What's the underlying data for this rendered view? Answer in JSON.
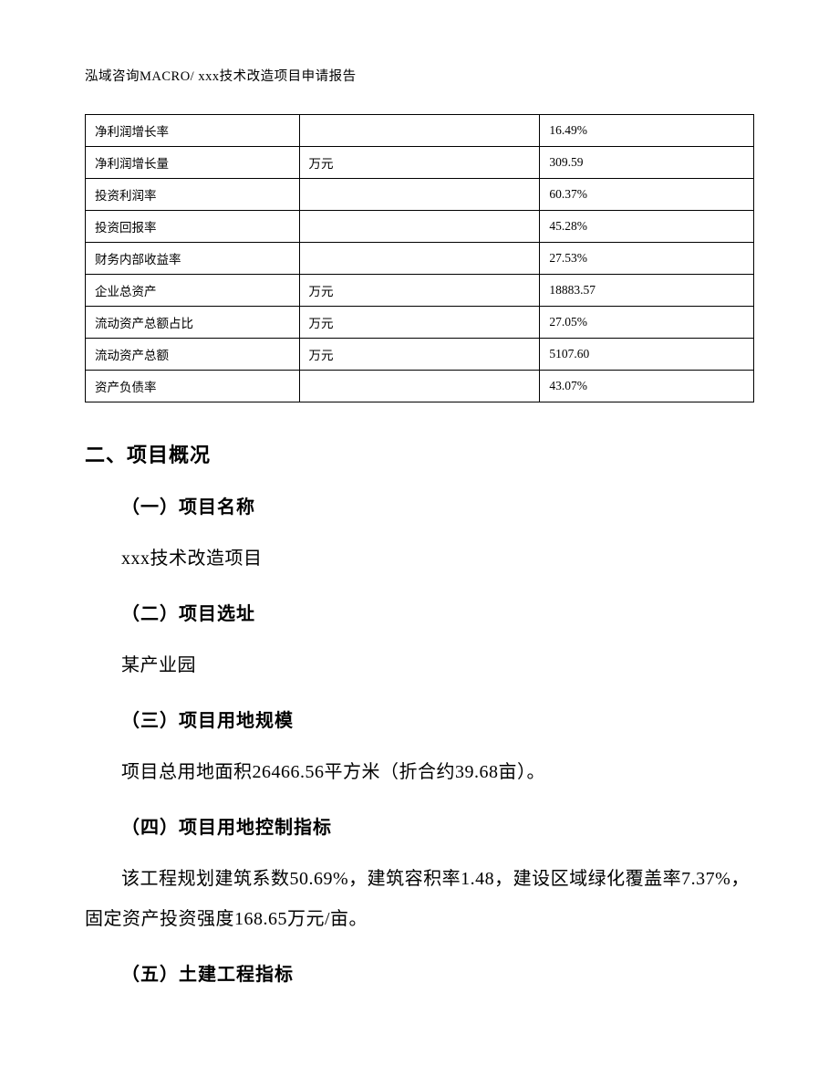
{
  "page": {
    "header": "泓域咨询MACRO/   xxx技术改造项目申请报告",
    "background_color": "#ffffff",
    "text_color": "#000000",
    "font_family_body": "SimSun",
    "font_family_heading": "SimHei"
  },
  "table": {
    "border_color": "#000000",
    "cell_fontsize": 13.5,
    "col_widths_pct": [
      32,
      36,
      32
    ],
    "rows": [
      {
        "label": "净利润增长率",
        "unit": "",
        "value": "16.49%"
      },
      {
        "label": "净利润增长量",
        "unit": "万元",
        "value": "309.59"
      },
      {
        "label": "投资利润率",
        "unit": "",
        "value": "60.37%"
      },
      {
        "label": "投资回报率",
        "unit": "",
        "value": "45.28%"
      },
      {
        "label": "财务内部收益率",
        "unit": "",
        "value": "27.53%"
      },
      {
        "label": "企业总资产",
        "unit": "万元",
        "value": "18883.57"
      },
      {
        "label": "流动资产总额占比",
        "unit": "万元",
        "value": "27.05%"
      },
      {
        "label": "流动资产总额",
        "unit": "万元",
        "value": "5107.60"
      },
      {
        "label": "资产负债率",
        "unit": "",
        "value": "43.07%"
      }
    ]
  },
  "sections": {
    "h2": "二、项目概况",
    "s1": {
      "heading": "（一）项目名称",
      "body": "xxx技术改造项目"
    },
    "s2": {
      "heading": "（二）项目选址",
      "body": "某产业园"
    },
    "s3": {
      "heading": "（三）项目用地规模",
      "body": "项目总用地面积26466.56平方米（折合约39.68亩）。"
    },
    "s4": {
      "heading": "（四）项目用地控制指标",
      "body": "该工程规划建筑系数50.69%，建筑容积率1.48，建设区域绿化覆盖率7.37%，固定资产投资强度168.65万元/亩。"
    },
    "s5": {
      "heading": "（五）土建工程指标"
    }
  },
  "typography": {
    "h2_fontsize": 22,
    "h3_fontsize": 20,
    "body_fontsize": 20,
    "header_fontsize": 14.5,
    "line_height": 2.2
  }
}
